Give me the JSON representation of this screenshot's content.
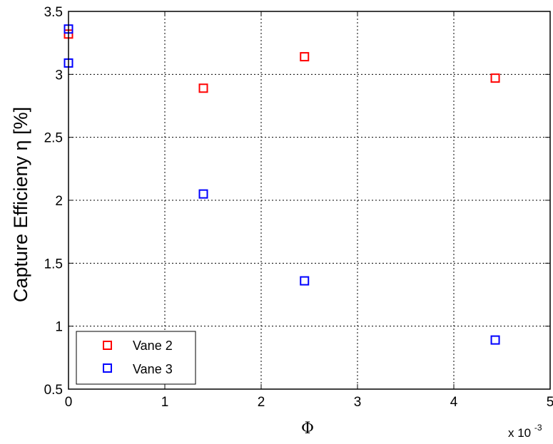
{
  "chart_data": {
    "type": "scatter",
    "title": "",
    "xlabel": "Φ",
    "ylabel": "Capture Efficieny η [%]",
    "x_multiplier_label": "x 10",
    "x_multiplier_exponent": "-3",
    "xlim": [
      0,
      5
    ],
    "ylim": [
      0.5,
      3.5
    ],
    "xticks": [
      0,
      1,
      2,
      3,
      4,
      5
    ],
    "yticks": [
      0.5,
      1,
      1.5,
      2,
      2.5,
      3,
      3.5
    ],
    "xtick_labels": [
      "0",
      "1",
      "2",
      "3",
      "4",
      "5"
    ],
    "ytick_labels": [
      "0.5",
      "1",
      "1.5",
      "2",
      "2.5",
      "3",
      "3.5"
    ],
    "grid": true,
    "legend_position": "bottom-left",
    "series": [
      {
        "name": "Vane 2",
        "color": "#ff0000",
        "marker": "square",
        "x": [
          0,
          1.4,
          2.45,
          4.43
        ],
        "y": [
          3.32,
          2.89,
          3.14,
          2.97
        ]
      },
      {
        "name": "Vane 3",
        "color": "#0000ff",
        "marker": "square",
        "x": [
          0,
          0,
          1.4,
          2.45,
          4.43
        ],
        "y": [
          3.36,
          3.09,
          2.05,
          1.36,
          0.89
        ]
      }
    ]
  }
}
